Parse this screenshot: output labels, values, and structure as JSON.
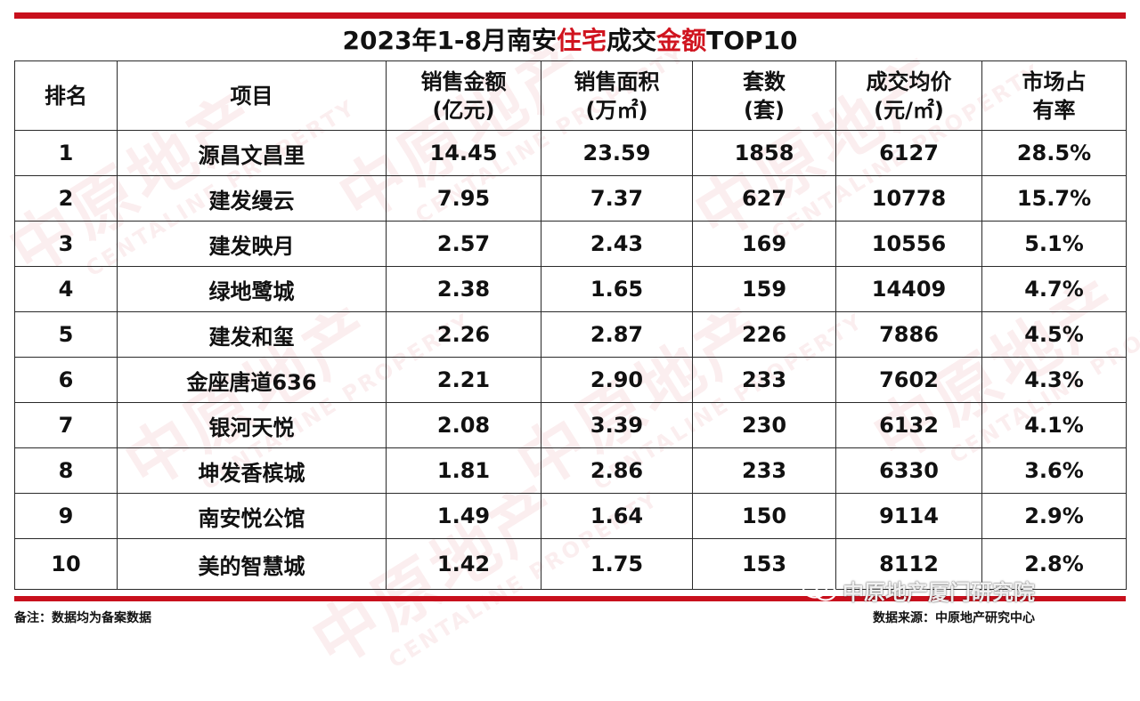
{
  "title": {
    "part1": "2023年1-8月南安",
    "highlight1": "住宅",
    "part2": "成交",
    "highlight2": "金额",
    "part3": "TOP10"
  },
  "colors": {
    "brand_red": "#c8101d",
    "highlight_red": "#d0141f",
    "border": "#2a2a2a"
  },
  "table": {
    "headers": [
      {
        "line1": "排名",
        "line2": ""
      },
      {
        "line1": "项目",
        "line2": ""
      },
      {
        "line1": "销售金额",
        "line2": "(亿元)"
      },
      {
        "line1": "销售面积",
        "line2": "(万㎡)"
      },
      {
        "line1": "套数",
        "line2": "(套)"
      },
      {
        "line1": "成交均价",
        "line2": "(元/㎡)"
      },
      {
        "line1": "市场占",
        "line2": "有率"
      }
    ],
    "rows": [
      [
        "1",
        "源昌文昌里",
        "14.45",
        "23.59",
        "1858",
        "6127",
        "28.5%"
      ],
      [
        "2",
        "建发缦云",
        "7.95",
        "7.37",
        "627",
        "10778",
        "15.7%"
      ],
      [
        "3",
        "建发映月",
        "2.57",
        "2.43",
        "169",
        "10556",
        "5.1%"
      ],
      [
        "4",
        "绿地鹭城",
        "2.38",
        "1.65",
        "159",
        "14409",
        "4.7%"
      ],
      [
        "5",
        "建发和玺",
        "2.26",
        "2.87",
        "226",
        "7886",
        "4.5%"
      ],
      [
        "6",
        "金座唐道636",
        "2.21",
        "2.90",
        "233",
        "7602",
        "4.3%"
      ],
      [
        "7",
        "银河天悦",
        "2.08",
        "3.39",
        "230",
        "6132",
        "4.1%"
      ],
      [
        "8",
        "坤发香槟城",
        "1.81",
        "2.86",
        "233",
        "6330",
        "3.6%"
      ],
      [
        "9",
        "南安悦公馆",
        "1.49",
        "1.64",
        "150",
        "9114",
        "2.9%"
      ],
      [
        "10",
        "美的智慧城",
        "1.42",
        "1.75",
        "153",
        "8112",
        "2.8%"
      ]
    ]
  },
  "footer": {
    "note": "备注：数据均为备案数据",
    "source": "数据来源：中原地产研究中心"
  },
  "watermark": {
    "text": "中原地产",
    "english": "CENTALINE PROPERTY"
  },
  "wechat_label": {
    "icon": "wechat-icon",
    "text": "中原地产厦门研究院"
  }
}
